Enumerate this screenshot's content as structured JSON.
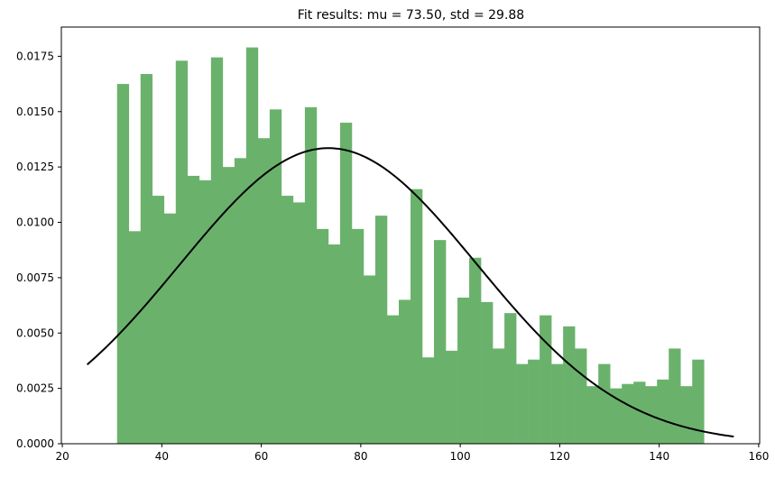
{
  "chart_data": {
    "type": "bar",
    "title": "Fit results: mu = 73.50,  std = 29.88",
    "xlabel": "",
    "ylabel": "",
    "xlim": [
      19.8,
      160.2
    ],
    "ylim": [
      0,
      0.01882
    ],
    "bin_width": 2.36,
    "bin_starts": [
      31.0,
      33.36,
      35.72,
      38.08,
      40.44,
      42.8,
      45.16,
      47.52,
      49.88,
      52.24,
      54.6,
      56.96,
      59.32,
      61.68,
      64.04,
      66.4,
      68.76,
      71.12,
      73.48,
      75.84,
      78.2,
      80.56,
      82.92,
      85.28,
      87.64,
      90.0,
      92.36,
      94.72,
      97.08,
      99.44,
      101.8,
      104.16,
      106.52,
      108.88,
      111.24,
      113.6,
      115.96,
      118.32,
      120.68,
      123.04,
      125.4,
      127.76,
      130.12,
      132.48,
      134.84,
      137.2,
      139.56,
      141.92,
      144.28,
      146.64
    ],
    "values": [
      0.01625,
      0.0096,
      0.0167,
      0.0112,
      0.0104,
      0.0173,
      0.0121,
      0.0119,
      0.01745,
      0.0125,
      0.0129,
      0.0179,
      0.0138,
      0.0151,
      0.0112,
      0.0109,
      0.0152,
      0.0097,
      0.009,
      0.0145,
      0.0097,
      0.0076,
      0.0103,
      0.0058,
      0.0065,
      0.0115,
      0.0039,
      0.0092,
      0.0042,
      0.0066,
      0.0084,
      0.0064,
      0.0043,
      0.0059,
      0.0036,
      0.0038,
      0.0058,
      0.0036,
      0.0053,
      0.0043,
      0.0026,
      0.0036,
      0.0025,
      0.0027,
      0.0028,
      0.0026,
      0.0029,
      0.0043,
      0.0026,
      0.0038
    ],
    "bar_color": "#6ab26c",
    "fit_curve": {
      "mu": 73.5,
      "std": 29.88,
      "x_range": [
        25,
        155
      ],
      "color": "#000000"
    },
    "x_ticks": [
      {
        "value": 20,
        "label": "20"
      },
      {
        "value": 40,
        "label": "40"
      },
      {
        "value": 60,
        "label": "60"
      },
      {
        "value": 80,
        "label": "80"
      },
      {
        "value": 100,
        "label": "100"
      },
      {
        "value": 120,
        "label": "120"
      },
      {
        "value": 140,
        "label": "140"
      },
      {
        "value": 160,
        "label": "160"
      }
    ],
    "y_ticks": [
      {
        "value": 0,
        "label": "0.0000"
      },
      {
        "value": 0.0025,
        "label": "0.0025"
      },
      {
        "value": 0.005,
        "label": "0.0050"
      },
      {
        "value": 0.0075,
        "label": "0.0075"
      },
      {
        "value": 0.01,
        "label": "0.0100"
      },
      {
        "value": 0.0125,
        "label": "0.0125"
      },
      {
        "value": 0.015,
        "label": "0.0150"
      },
      {
        "value": 0.0175,
        "label": "0.0175"
      }
    ],
    "grid": false,
    "legend": false
  }
}
